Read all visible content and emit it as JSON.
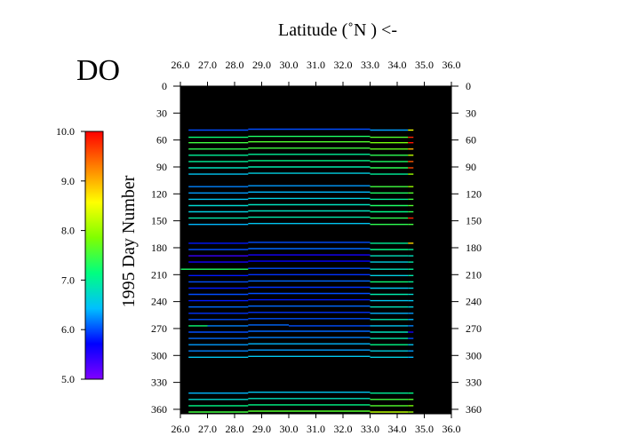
{
  "chart_data": {
    "type": "scatter",
    "title": "DO",
    "xlabel": "Latitude  (˚N )  <-",
    "ylabel": "1995  Day Number",
    "xlim": [
      26.0,
      36.0
    ],
    "ylim": [
      0,
      365
    ],
    "x_ticks": [
      "26.0",
      "27.0",
      "28.0",
      "29.0",
      "30.0",
      "31.0",
      "32.0",
      "33.0",
      "34.0",
      "35.0",
      "36.0"
    ],
    "y_ticks": [
      "0",
      "30",
      "60",
      "90",
      "120",
      "150",
      "180",
      "210",
      "240",
      "270",
      "300",
      "330",
      "360"
    ],
    "plot_background": "#000000",
    "colorbar": {
      "min": 5.0,
      "max": 10.0,
      "ticks": [
        "5.0",
        "6.0",
        "7.0",
        "8.0",
        "9.0",
        "10.0"
      ],
      "colormap": [
        "#8000ff",
        "#0000ff",
        "#00c0ff",
        "#00ff80",
        "#80ff00",
        "#ffff00",
        "#ff8000",
        "#ff0000"
      ]
    },
    "tracks": [
      {
        "day": 49,
        "lat_start": 26.3,
        "lat_end": 34.6,
        "segments": [
          [
            26.3,
            6.0
          ],
          [
            28.5,
            6.0
          ],
          [
            33.0,
            6.3
          ],
          [
            34.4,
            8.5
          ]
        ]
      },
      {
        "day": 57,
        "lat_start": 26.3,
        "lat_end": 34.6,
        "segments": [
          [
            26.3,
            7.2
          ],
          [
            28.5,
            7.3
          ],
          [
            33.0,
            7.6
          ],
          [
            34.4,
            9.8
          ]
        ]
      },
      {
        "day": 63,
        "lat_start": 26.3,
        "lat_end": 34.6,
        "segments": [
          [
            26.3,
            7.5
          ],
          [
            28.5,
            7.6
          ],
          [
            33.0,
            7.8
          ],
          [
            34.4,
            9.9
          ]
        ]
      },
      {
        "day": 70,
        "lat_start": 26.3,
        "lat_end": 34.6,
        "segments": [
          [
            26.3,
            7.4
          ],
          [
            28.5,
            7.5
          ],
          [
            33.0,
            7.7
          ],
          [
            34.4,
            9.0
          ]
        ]
      },
      {
        "day": 77,
        "lat_start": 26.3,
        "lat_end": 34.6,
        "segments": [
          [
            26.3,
            7.0
          ],
          [
            28.5,
            7.0
          ],
          [
            33.0,
            7.4
          ],
          [
            34.4,
            8.2
          ]
        ]
      },
      {
        "day": 84,
        "lat_start": 26.3,
        "lat_end": 34.6,
        "segments": [
          [
            26.3,
            7.0
          ],
          [
            28.5,
            7.1
          ],
          [
            33.0,
            7.3
          ],
          [
            34.4,
            9.5
          ]
        ]
      },
      {
        "day": 91,
        "lat_start": 26.3,
        "lat_end": 34.6,
        "segments": [
          [
            26.3,
            6.8
          ],
          [
            28.5,
            6.9
          ],
          [
            33.0,
            7.4
          ],
          [
            34.4,
            9.6
          ]
        ]
      },
      {
        "day": 98,
        "lat_start": 26.3,
        "lat_end": 34.6,
        "segments": [
          [
            26.3,
            6.5
          ],
          [
            28.5,
            6.6
          ],
          [
            33.0,
            7.0
          ],
          [
            34.4,
            8.0
          ]
        ]
      },
      {
        "day": 112,
        "lat_start": 26.3,
        "lat_end": 34.6,
        "segments": [
          [
            26.3,
            6.2
          ],
          [
            28.5,
            6.3
          ],
          [
            33.0,
            7.5
          ],
          [
            34.4,
            8.0
          ]
        ]
      },
      {
        "day": 119,
        "lat_start": 26.3,
        "lat_end": 34.6,
        "segments": [
          [
            26.3,
            6.3
          ],
          [
            28.5,
            6.4
          ],
          [
            33.0,
            7.3
          ],
          [
            34.4,
            7.6
          ]
        ]
      },
      {
        "day": 126,
        "lat_start": 26.3,
        "lat_end": 34.6,
        "segments": [
          [
            26.3,
            6.5
          ],
          [
            28.5,
            6.6
          ],
          [
            33.0,
            7.0
          ],
          [
            34.4,
            7.5
          ]
        ]
      },
      {
        "day": 133,
        "lat_start": 26.3,
        "lat_end": 34.6,
        "segments": [
          [
            26.3,
            6.7
          ],
          [
            28.5,
            6.8
          ],
          [
            33.0,
            7.3
          ],
          [
            34.4,
            7.6
          ]
        ]
      },
      {
        "day": 140,
        "lat_start": 26.3,
        "lat_end": 34.6,
        "segments": [
          [
            26.3,
            6.6
          ],
          [
            28.5,
            6.8
          ],
          [
            33.0,
            7.1
          ],
          [
            34.4,
            7.4
          ]
        ]
      },
      {
        "day": 147,
        "lat_start": 26.3,
        "lat_end": 34.6,
        "segments": [
          [
            26.3,
            6.9
          ],
          [
            28.5,
            6.9
          ],
          [
            33.0,
            7.4
          ],
          [
            34.4,
            9.8
          ]
        ]
      },
      {
        "day": 154,
        "lat_start": 26.3,
        "lat_end": 34.6,
        "segments": [
          [
            26.3,
            6.4
          ],
          [
            28.5,
            6.5
          ],
          [
            33.0,
            7.4
          ],
          [
            34.4,
            7.5
          ]
        ]
      },
      {
        "day": 175,
        "lat_start": 26.3,
        "lat_end": 34.6,
        "segments": [
          [
            26.3,
            5.8
          ],
          [
            28.5,
            6.0
          ],
          [
            33.0,
            7.0
          ],
          [
            34.4,
            8.8
          ]
        ]
      },
      {
        "day": 182,
        "lat_start": 26.3,
        "lat_end": 34.6,
        "segments": [
          [
            26.3,
            6.0
          ],
          [
            28.5,
            6.1
          ],
          [
            33.0,
            7.1
          ],
          [
            34.4,
            7.0
          ]
        ]
      },
      {
        "day": 189,
        "lat_start": 26.3,
        "lat_end": 34.6,
        "segments": [
          [
            26.3,
            5.4
          ],
          [
            28.5,
            5.6
          ],
          [
            33.0,
            6.8
          ],
          [
            34.4,
            6.8
          ]
        ]
      },
      {
        "day": 196,
        "lat_start": 26.3,
        "lat_end": 34.6,
        "segments": [
          [
            26.3,
            5.6
          ],
          [
            28.5,
            5.7
          ],
          [
            33.0,
            6.6
          ],
          [
            34.4,
            6.9
          ]
        ]
      },
      {
        "day": 204,
        "lat_start": 26.0,
        "lat_end": 34.6,
        "segments": [
          [
            26.0,
            7.3
          ],
          [
            28.5,
            6.0
          ],
          [
            33.0,
            6.8
          ],
          [
            34.4,
            7.0
          ]
        ]
      },
      {
        "day": 211,
        "lat_start": 26.3,
        "lat_end": 34.6,
        "segments": [
          [
            26.3,
            5.8
          ],
          [
            28.5,
            5.9
          ],
          [
            33.0,
            6.6
          ],
          [
            34.4,
            6.9
          ]
        ]
      },
      {
        "day": 218,
        "lat_start": 26.3,
        "lat_end": 34.6,
        "segments": [
          [
            26.3,
            6.0
          ],
          [
            28.5,
            6.1
          ],
          [
            33.0,
            7.2
          ],
          [
            34.4,
            7.0
          ]
        ]
      },
      {
        "day": 225,
        "lat_start": 26.3,
        "lat_end": 34.6,
        "segments": [
          [
            26.3,
            5.8
          ],
          [
            28.5,
            5.9
          ],
          [
            33.0,
            6.5
          ],
          [
            34.4,
            6.6
          ]
        ]
      },
      {
        "day": 232,
        "lat_start": 26.3,
        "lat_end": 34.6,
        "segments": [
          [
            26.3,
            6.0
          ],
          [
            28.5,
            6.0
          ],
          [
            33.0,
            6.9
          ],
          [
            34.4,
            6.7
          ]
        ]
      },
      {
        "day": 239,
        "lat_start": 26.3,
        "lat_end": 34.6,
        "segments": [
          [
            26.3,
            5.8
          ],
          [
            28.5,
            5.8
          ],
          [
            33.0,
            6.5
          ],
          [
            34.4,
            6.5
          ]
        ]
      },
      {
        "day": 246,
        "lat_start": 26.3,
        "lat_end": 34.6,
        "segments": [
          [
            26.3,
            6.1
          ],
          [
            28.5,
            6.1
          ],
          [
            33.0,
            6.8
          ],
          [
            34.4,
            6.6
          ]
        ]
      },
      {
        "day": 253,
        "lat_start": 26.3,
        "lat_end": 34.6,
        "segments": [
          [
            26.3,
            5.9
          ],
          [
            28.5,
            5.9
          ],
          [
            33.0,
            6.4
          ],
          [
            34.4,
            6.3
          ]
        ]
      },
      {
        "day": 260,
        "lat_start": 26.3,
        "lat_end": 34.6,
        "segments": [
          [
            26.3,
            6.0
          ],
          [
            28.5,
            6.0
          ],
          [
            33.0,
            6.9
          ],
          [
            34.4,
            6.4
          ]
        ]
      },
      {
        "day": 267,
        "lat_start": 26.3,
        "lat_end": 34.6,
        "segments": [
          [
            26.3,
            7.2
          ],
          [
            27.0,
            6.2
          ],
          [
            28.5,
            6.1
          ],
          [
            30.0,
            6.0
          ],
          [
            33.0,
            6.5
          ],
          [
            34.4,
            6.2
          ]
        ]
      },
      {
        "day": 274,
        "lat_start": 26.3,
        "lat_end": 34.6,
        "segments": [
          [
            26.3,
            6.0
          ],
          [
            28.5,
            6.1
          ],
          [
            33.0,
            6.8
          ],
          [
            34.4,
            5.6
          ]
        ]
      },
      {
        "day": 281,
        "lat_start": 26.3,
        "lat_end": 34.6,
        "segments": [
          [
            26.3,
            6.1
          ],
          [
            28.5,
            6.2
          ],
          [
            33.0,
            6.9
          ],
          [
            34.4,
            6.0
          ]
        ]
      },
      {
        "day": 288,
        "lat_start": 26.3,
        "lat_end": 34.6,
        "segments": [
          [
            26.3,
            6.3
          ],
          [
            28.5,
            6.4
          ],
          [
            33.0,
            7.1
          ],
          [
            34.4,
            6.5
          ]
        ]
      },
      {
        "day": 295,
        "lat_start": 26.3,
        "lat_end": 34.6,
        "segments": [
          [
            26.3,
            6.2
          ],
          [
            28.5,
            6.3
          ],
          [
            33.0,
            6.6
          ],
          [
            34.4,
            6.3
          ]
        ]
      },
      {
        "day": 302,
        "lat_start": 26.3,
        "lat_end": 34.6,
        "segments": [
          [
            26.3,
            6.5
          ],
          [
            28.5,
            6.5
          ],
          [
            33.0,
            6.6
          ],
          [
            34.4,
            6.4
          ]
        ]
      },
      {
        "day": 342,
        "lat_start": 26.3,
        "lat_end": 34.6,
        "segments": [
          [
            26.3,
            6.4
          ],
          [
            28.5,
            6.5
          ],
          [
            33.0,
            7.0
          ],
          [
            34.4,
            7.1
          ]
        ]
      },
      {
        "day": 349,
        "lat_start": 26.3,
        "lat_end": 34.6,
        "segments": [
          [
            26.3,
            6.7
          ],
          [
            28.5,
            6.8
          ],
          [
            33.0,
            7.5
          ],
          [
            34.4,
            7.6
          ]
        ]
      },
      {
        "day": 356,
        "lat_start": 26.3,
        "lat_end": 34.6,
        "segments": [
          [
            26.3,
            7.1
          ],
          [
            28.5,
            7.1
          ],
          [
            33.0,
            7.6
          ],
          [
            34.4,
            7.8
          ]
        ]
      },
      {
        "day": 363,
        "lat_start": 26.3,
        "lat_end": 34.6,
        "segments": [
          [
            26.3,
            7.5
          ],
          [
            28.5,
            7.6
          ],
          [
            33.0,
            8.2
          ],
          [
            34.4,
            8.0
          ]
        ]
      }
    ]
  }
}
